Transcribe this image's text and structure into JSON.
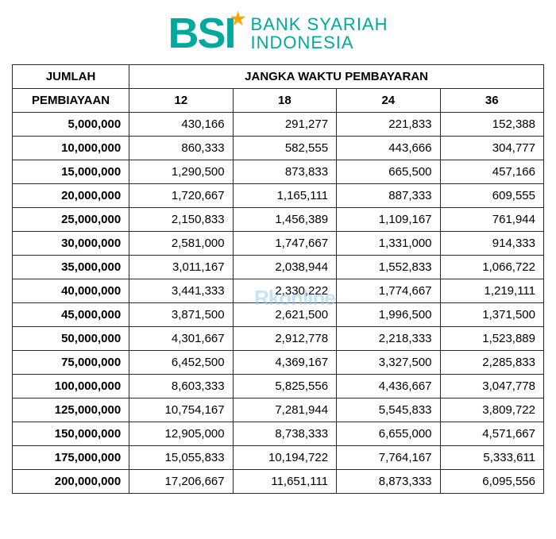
{
  "logo": {
    "mark": "BSI",
    "line1": "BANK SYARIAH",
    "line2": "INDONESIA",
    "brand_color": "#00a99d",
    "star_color": "#f7a800"
  },
  "watermark": "Rkonline",
  "table": {
    "header_amount": "JUMLAH",
    "header_amount_sub": "PEMBIAYAAN",
    "header_period": "JANGKA WAKTU PEMBAYARAN",
    "periods": [
      "12",
      "18",
      "24",
      "36"
    ],
    "rows": [
      {
        "amount": "5,000,000",
        "v": [
          "430,166",
          "291,277",
          "221,833",
          "152,388"
        ]
      },
      {
        "amount": "10,000,000",
        "v": [
          "860,333",
          "582,555",
          "443,666",
          "304,777"
        ]
      },
      {
        "amount": "15,000,000",
        "v": [
          "1,290,500",
          "873,833",
          "665,500",
          "457,166"
        ]
      },
      {
        "amount": "20,000,000",
        "v": [
          "1,720,667",
          "1,165,111",
          "887,333",
          "609,555"
        ]
      },
      {
        "amount": "25,000,000",
        "v": [
          "2,150,833",
          "1,456,389",
          "1,109,167",
          "761,944"
        ]
      },
      {
        "amount": "30,000,000",
        "v": [
          "2,581,000",
          "1,747,667",
          "1,331,000",
          "914,333"
        ]
      },
      {
        "amount": "35,000,000",
        "v": [
          "3,011,167",
          "2,038,944",
          "1,552,833",
          "1,066,722"
        ]
      },
      {
        "amount": "40,000,000",
        "v": [
          "3,441,333",
          "2,330,222",
          "1,774,667",
          "1,219,111"
        ]
      },
      {
        "amount": "45,000,000",
        "v": [
          "3,871,500",
          "2,621,500",
          "1,996,500",
          "1,371,500"
        ]
      },
      {
        "amount": "50,000,000",
        "v": [
          "4,301,667",
          "2,912,778",
          "2,218,333",
          "1,523,889"
        ]
      },
      {
        "amount": "75,000,000",
        "v": [
          "6,452,500",
          "4,369,167",
          "3,327,500",
          "2,285,833"
        ]
      },
      {
        "amount": "100,000,000",
        "v": [
          "8,603,333",
          "5,825,556",
          "4,436,667",
          "3,047,778"
        ]
      },
      {
        "amount": "125,000,000",
        "v": [
          "10,754,167",
          "7,281,944",
          "5,545,833",
          "3,809,722"
        ]
      },
      {
        "amount": "150,000,000",
        "v": [
          "12,905,000",
          "8,738,333",
          "6,655,000",
          "4,571,667"
        ]
      },
      {
        "amount": "175,000,000",
        "v": [
          "15,055,833",
          "10,194,722",
          "7,764,167",
          "5,333,611"
        ]
      },
      {
        "amount": "200,000,000",
        "v": [
          "17,206,667",
          "11,651,111",
          "8,873,333",
          "6,095,556"
        ]
      }
    ],
    "border_color": "#2a2a2a",
    "text_color": "#111111",
    "background_color": "#ffffff",
    "font_size": 15,
    "header_font_weight": 700
  }
}
